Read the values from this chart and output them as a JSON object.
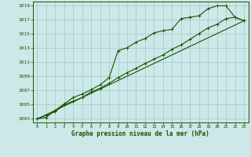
{
  "title": "Graphe pression niveau de la mer (hPa)",
  "hours": [
    0,
    1,
    2,
    3,
    4,
    5,
    6,
    7,
    8,
    9,
    10,
    11,
    12,
    13,
    14,
    15,
    16,
    17,
    18,
    19,
    20,
    21,
    22,
    23
  ],
  "ylim": [
    1002.5,
    1019.5
  ],
  "xlim": [
    -0.5,
    23.5
  ],
  "yticks": [
    1003,
    1005,
    1007,
    1009,
    1011,
    1013,
    1015,
    1017,
    1019
  ],
  "bg_color": "#cde8e8",
  "grid_color": "#9ec8c8",
  "line_color": "#1a5200",
  "curve1_x": [
    0,
    1,
    2,
    3,
    4,
    5,
    6,
    7,
    8,
    9,
    10,
    11,
    12,
    13,
    14,
    15,
    16,
    17,
    18,
    19,
    20,
    21,
    22,
    23
  ],
  "curve1_y": [
    1003.0,
    1003.2,
    1004.2,
    1005.1,
    1006.0,
    1006.5,
    1007.1,
    1007.8,
    1008.8,
    1012.6,
    1013.0,
    1013.8,
    1014.3,
    1015.1,
    1015.4,
    1015.6,
    1017.1,
    1017.3,
    1017.5,
    1018.5,
    1018.9,
    1018.9,
    1017.3,
    1016.8
  ],
  "curve2_x": [
    0,
    1,
    2,
    3,
    4,
    5,
    6,
    7,
    8,
    9,
    10,
    11,
    12,
    13,
    14,
    15,
    16,
    17,
    18,
    19,
    20,
    21,
    22,
    23
  ],
  "curve2_y": [
    1003.0,
    1003.5,
    1004.0,
    1005.0,
    1005.5,
    1006.0,
    1006.8,
    1007.3,
    1008.0,
    1008.8,
    1009.5,
    1010.1,
    1010.8,
    1011.4,
    1012.0,
    1012.8,
    1013.4,
    1014.2,
    1015.0,
    1015.8,
    1016.3,
    1017.1,
    1017.3,
    1016.8
  ],
  "line_x": [
    0,
    23
  ],
  "line_y": [
    1003.0,
    1016.8
  ]
}
